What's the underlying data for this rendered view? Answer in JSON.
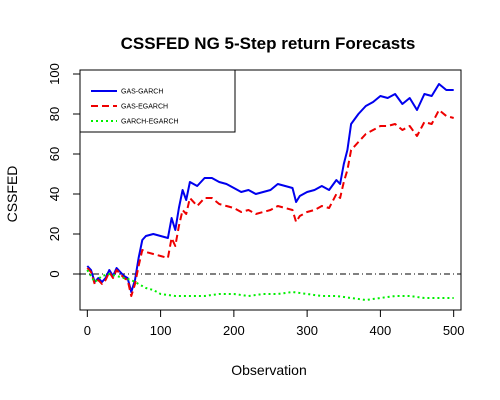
{
  "chart_data": {
    "type": "line",
    "title": "CSSFED NG 5-Step return Forecasts",
    "xlabel": "Observation",
    "ylabel": "CSSFED",
    "xlim": [
      -10,
      510
    ],
    "ylim": [
      -18,
      102
    ],
    "xticks": [
      0,
      100,
      200,
      300,
      400,
      500
    ],
    "yticks": [
      0,
      20,
      40,
      60,
      80,
      100
    ],
    "reference_line": 0,
    "grid": false,
    "legend_position": "top-left",
    "series": [
      {
        "name": "GAS-GARCH",
        "color": "#0000ee",
        "style": "solid",
        "x": [
          0,
          5,
          10,
          15,
          20,
          25,
          30,
          35,
          40,
          45,
          50,
          55,
          60,
          65,
          70,
          75,
          80,
          90,
          100,
          110,
          115,
          120,
          125,
          130,
          135,
          140,
          150,
          160,
          170,
          180,
          190,
          200,
          210,
          220,
          230,
          240,
          250,
          260,
          270,
          280,
          285,
          290,
          300,
          310,
          320,
          330,
          340,
          345,
          350,
          355,
          360,
          370,
          380,
          390,
          400,
          410,
          420,
          430,
          440,
          450,
          460,
          470,
          480,
          490,
          500
        ],
        "y": [
          4,
          2,
          -4,
          -2,
          -4,
          -2,
          2,
          -1,
          3,
          1,
          -1,
          -2,
          -9,
          -3,
          8,
          17,
          19,
          20,
          19,
          18,
          28,
          22,
          33,
          42,
          37,
          46,
          44,
          48,
          48,
          46,
          45,
          43,
          41,
          42,
          40,
          41,
          42,
          45,
          44,
          43,
          36,
          39,
          41,
          42,
          44,
          42,
          47,
          45,
          55,
          62,
          75,
          80,
          84,
          86,
          89,
          88,
          90,
          85,
          88,
          82,
          90,
          89,
          95,
          92,
          92
        ]
      },
      {
        "name": "GAS-EGARCH",
        "color": "#ee0000",
        "style": "dashed",
        "x": [
          0,
          5,
          10,
          15,
          20,
          25,
          30,
          35,
          40,
          45,
          50,
          55,
          60,
          65,
          70,
          75,
          80,
          90,
          100,
          110,
          115,
          120,
          125,
          130,
          135,
          140,
          150,
          160,
          170,
          180,
          190,
          200,
          210,
          220,
          230,
          240,
          250,
          260,
          270,
          280,
          285,
          290,
          300,
          310,
          320,
          330,
          340,
          345,
          350,
          355,
          360,
          370,
          380,
          390,
          400,
          410,
          420,
          430,
          440,
          450,
          460,
          470,
          480,
          490,
          500
        ],
        "y": [
          3,
          1,
          -5,
          -3,
          -5,
          -3,
          1,
          -2,
          2,
          0,
          -2,
          -3,
          -11,
          -5,
          4,
          12,
          11,
          10,
          9,
          8,
          18,
          14,
          24,
          32,
          30,
          38,
          34,
          38,
          38,
          35,
          34,
          33,
          31,
          32,
          30,
          31,
          32,
          34,
          33,
          32,
          26,
          29,
          31,
          32,
          34,
          33,
          40,
          38,
          46,
          52,
          62,
          66,
          70,
          72,
          74,
          74,
          75,
          72,
          74,
          69,
          76,
          75,
          82,
          79,
          78
        ]
      },
      {
        "name": "GARCH-EGARCH",
        "color": "#00ee00",
        "style": "dotted",
        "x": [
          0,
          10,
          20,
          30,
          40,
          50,
          60,
          70,
          80,
          90,
          100,
          120,
          140,
          160,
          180,
          200,
          220,
          240,
          260,
          280,
          300,
          320,
          340,
          360,
          380,
          400,
          420,
          440,
          460,
          480,
          500
        ],
        "y": [
          2,
          -4,
          -1,
          0,
          -1,
          -2,
          -3,
          -5,
          -7,
          -8,
          -10,
          -11,
          -11,
          -11,
          -10,
          -10,
          -11,
          -10,
          -10,
          -9,
          -10,
          -11,
          -11,
          -12,
          -13,
          -12,
          -11,
          -11,
          -12,
          -12,
          -12
        ]
      }
    ]
  }
}
